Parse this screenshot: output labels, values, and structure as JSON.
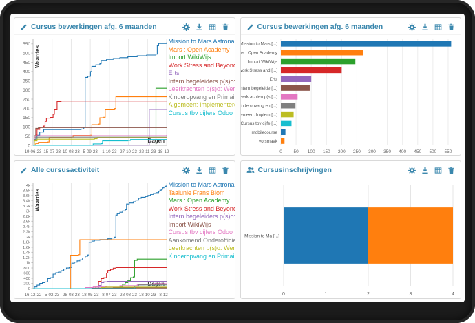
{
  "accent": "#3a87ad",
  "frame_color": "#1c1c1c",
  "palette": [
    "#1f77b4",
    "#ff7f0e",
    "#2ca02c",
    "#d62728",
    "#9467bd",
    "#8c564b",
    "#e377c2",
    "#7f7f7f",
    "#bcbd22",
    "#17becf"
  ],
  "action_icons": [
    "gear",
    "download",
    "table",
    "trash"
  ],
  "panels": [
    {
      "title": "Cursus bewerkingen afg. 6 maanden",
      "title_icon": "pencil"
    },
    {
      "title": "Cursus bewerkingen afg. 6 maanden",
      "title_icon": "pencil"
    },
    {
      "title": "Alle cursusactiviteit",
      "title_icon": "pencil"
    },
    {
      "title": "Cursusinschrijvingen",
      "title_icon": "users"
    }
  ],
  "chart_data": [
    {
      "type": "line",
      "xlabel": "Dagen",
      "ylabel": "Waardes",
      "x_ticks": [
        "19-06-23",
        "15-07-23",
        "10-08-23",
        "5-09-23",
        "1-10-23",
        "27-10-23",
        "22-11-23",
        "18-12-23"
      ],
      "y_ticks": [
        "0",
        "50",
        "100",
        "150",
        "200",
        "250",
        "300",
        "350",
        "400",
        "450",
        "500",
        "550"
      ],
      "y_step": 50,
      "y_max": 575,
      "grid": "vertical",
      "legend_position": "right",
      "series": [
        {
          "name": "Mission to Mars Astronau",
          "color": "#1f77b4",
          "points": [
            [
              0,
              0
            ],
            [
              1,
              30
            ],
            [
              3,
              55
            ],
            [
              5,
              72
            ],
            [
              8,
              85
            ],
            [
              36,
              88
            ],
            [
              38,
              98
            ],
            [
              39,
              368
            ],
            [
              41,
              374
            ],
            [
              43,
              400
            ],
            [
              44,
              428
            ],
            [
              47,
              436
            ],
            [
              50,
              442
            ],
            [
              51,
              460
            ],
            [
              55,
              466
            ],
            [
              60,
              470
            ],
            [
              65,
              475
            ],
            [
              71,
              480
            ],
            [
              78,
              485
            ],
            [
              85,
              489
            ],
            [
              92,
              494
            ],
            [
              93,
              540
            ],
            [
              94,
              552
            ],
            [
              100,
              557
            ]
          ]
        },
        {
          "name": "Mars : Open Academy",
          "color": "#ff7f0e",
          "points": [
            [
              0,
              0
            ],
            [
              2,
              10
            ],
            [
              4,
              16
            ],
            [
              11,
              18
            ],
            [
              12,
              42
            ],
            [
              29,
              44
            ],
            [
              30,
              54
            ],
            [
              43,
              55
            ],
            [
              44,
              112
            ],
            [
              49,
              115
            ],
            [
              50,
              149
            ],
            [
              53,
              152
            ],
            [
              54,
              196
            ],
            [
              61,
              199
            ],
            [
              62,
              263
            ],
            [
              100,
              267
            ]
          ]
        },
        {
          "name": "Import WikiWijs",
          "color": "#2ca02c",
          "points": [
            [
              0,
              2
            ],
            [
              91,
              2
            ],
            [
              92,
              309
            ],
            [
              100,
              311
            ]
          ]
        },
        {
          "name": "Work Stress and Beyond",
          "color": "#d62728",
          "points": [
            [
              0,
              0
            ],
            [
              1,
              40
            ],
            [
              2,
              56
            ],
            [
              3,
              86
            ],
            [
              5,
              98
            ],
            [
              8,
              104
            ],
            [
              9,
              130
            ],
            [
              10,
              147
            ],
            [
              13,
              151
            ],
            [
              15,
              168
            ],
            [
              16,
              196
            ],
            [
              18,
              237
            ],
            [
              21,
              240
            ],
            [
              100,
              241
            ]
          ]
        },
        {
          "name": "Erts",
          "color": "#9467bd",
          "points": [
            [
              0,
              1
            ],
            [
              86,
              1
            ],
            [
              87,
              194
            ],
            [
              100,
              196
            ]
          ]
        },
        {
          "name": "Intern begeleiders p(s)o:",
          "color": "#8c564b",
          "points": [
            [
              0,
              0
            ],
            [
              1,
              52
            ],
            [
              2,
              92
            ],
            [
              4,
              96
            ],
            [
              100,
              99
            ]
          ]
        },
        {
          "name": "Leerkrachten p(s)o: Werk",
          "color": "#e377c2",
          "points": [
            [
              0,
              0
            ],
            [
              1,
              40
            ],
            [
              2,
              52
            ],
            [
              100,
              56
            ]
          ]
        },
        {
          "name": "Kinderopvang en Primair",
          "color": "#7f7f7f",
          "points": [
            [
              0,
              0
            ],
            [
              1,
              32
            ],
            [
              2,
              44
            ],
            [
              100,
              46
            ]
          ]
        },
        {
          "name": "Algemeen: Implementere",
          "color": "#bcbd22",
          "points": [
            [
              0,
              0
            ],
            [
              1,
              24
            ],
            [
              3,
              33
            ],
            [
              46,
              35
            ],
            [
              48,
              41
            ],
            [
              100,
              42
            ]
          ]
        },
        {
          "name": "Cursus tbv cijfers Odoo",
          "color": "#17becf",
          "points": [
            [
              0,
              0
            ],
            [
              43,
              0
            ],
            [
              45,
              8
            ],
            [
              51,
              9
            ],
            [
              52,
              24
            ],
            [
              71,
              26
            ],
            [
              73,
              31
            ],
            [
              100,
              32
            ]
          ]
        }
      ]
    },
    {
      "type": "bar",
      "orientation": "horizontal",
      "x_ticks": [
        "0",
        "50",
        "100",
        "150",
        "200",
        "250",
        "300",
        "350",
        "400",
        "450",
        "500",
        "550"
      ],
      "x_step": 50,
      "x_max": 575,
      "grid": "vertical",
      "categories": [
        "Mission to Mars [...]",
        "Mars : Open Academy",
        "Import WikiWijs",
        "Work Stress and [...]",
        "Erts",
        "Intern begeleide [...]",
        "Leerkrachten p(s [...]",
        "Kinderopvang en [...]",
        "Algemeen: Implem [...]",
        "Cursus tbv cijfe [...]",
        "mobilecourse",
        "vo smaak"
      ],
      "values": [
        560,
        270,
        245,
        200,
        100,
        95,
        55,
        48,
        42,
        35,
        15,
        12
      ],
      "colors": [
        "#1f77b4",
        "#ff7f0e",
        "#2ca02c",
        "#d62728",
        "#9467bd",
        "#8c564b",
        "#e377c2",
        "#7f7f7f",
        "#bcbd22",
        "#17becf",
        "#1f77b4",
        "#ff7f0e"
      ]
    },
    {
      "type": "line",
      "xlabel": "Dagen",
      "ylabel": "Waardes",
      "x_ticks": [
        "16-12-22",
        "5-02-23",
        "28-03-23",
        "18-05-23",
        "8-07-23",
        "28-08-23",
        "18-10-23",
        "8-12-23"
      ],
      "y_ticks": [
        "0",
        "200",
        "400",
        "600",
        "800",
        "1k",
        "1.2k",
        "1.4k",
        "1.6k",
        "1.8k",
        "2k",
        "2.2k",
        "2.4k",
        "2.6k",
        "2.8k",
        "3k",
        "3.2k",
        "3.4k",
        "3.6k",
        "3.8k",
        "4k"
      ],
      "y_step": 200,
      "y_max": 4100,
      "grid": "vertical",
      "legend_position": "right",
      "series": [
        {
          "name": "Mission to Mars Astronau",
          "color": "#1f77b4",
          "points": [
            [
              0,
              0
            ],
            [
              1,
              60
            ],
            [
              3,
              130
            ],
            [
              5,
              200
            ],
            [
              7,
              225
            ],
            [
              9,
              255
            ],
            [
              11,
              390
            ],
            [
              13,
              420
            ],
            [
              15,
              560
            ],
            [
              17,
              610
            ],
            [
              19,
              635
            ],
            [
              21,
              690
            ],
            [
              23,
              755
            ],
            [
              25,
              795
            ],
            [
              27,
              820
            ],
            [
              29,
              980
            ],
            [
              31,
              1020
            ],
            [
              33,
              1070
            ],
            [
              35,
              1110
            ],
            [
              37,
              1185
            ],
            [
              39,
              1250
            ],
            [
              41,
              1300
            ],
            [
              42,
              1790
            ],
            [
              44,
              1835
            ],
            [
              46,
              1870
            ],
            [
              50,
              1895
            ],
            [
              56,
              1925
            ],
            [
              59,
              1955
            ],
            [
              61,
              1990
            ],
            [
              62,
              2840
            ],
            [
              63,
              2895
            ],
            [
              65,
              2950
            ],
            [
              67,
              3000
            ],
            [
              69,
              3050
            ],
            [
              70,
              3270
            ],
            [
              72,
              3310
            ],
            [
              75,
              3355
            ],
            [
              77,
              3415
            ],
            [
              79,
              3490
            ],
            [
              81,
              3530
            ],
            [
              84,
              3560
            ],
            [
              86,
              3600
            ],
            [
              88,
              3640
            ],
            [
              90,
              3675
            ],
            [
              92,
              3705
            ],
            [
              94,
              3760
            ],
            [
              95,
              3800
            ],
            [
              96,
              3840
            ],
            [
              97,
              3895
            ],
            [
              98,
              3930
            ],
            [
              99,
              3960
            ],
            [
              100,
              3990
            ]
          ]
        },
        {
          "name": "Taalunie Frans Blom",
          "color": "#ff7f0e",
          "points": [
            [
              0,
              0
            ],
            [
              27,
              0
            ],
            [
              28,
              1290
            ],
            [
              34,
              1310
            ],
            [
              35,
              1890
            ],
            [
              100,
              1900
            ]
          ]
        },
        {
          "name": "Mars : Open Academy",
          "color": "#2ca02c",
          "points": [
            [
              0,
              0
            ],
            [
              63,
              0
            ],
            [
              65,
              60
            ],
            [
              67,
              160
            ],
            [
              69,
              230
            ],
            [
              71,
              300
            ],
            [
              73,
              420
            ],
            [
              75,
              450
            ],
            [
              76,
              1090
            ],
            [
              78,
              1140
            ],
            [
              100,
              1150
            ]
          ]
        },
        {
          "name": "Work Stress and Beyond",
          "color": "#d62728",
          "points": [
            [
              0,
              0
            ],
            [
              45,
              0
            ],
            [
              47,
              90
            ],
            [
              49,
              280
            ],
            [
              51,
              390
            ],
            [
              53,
              420
            ],
            [
              55,
              600
            ],
            [
              56,
              700
            ],
            [
              58,
              740
            ],
            [
              60,
              790
            ],
            [
              62,
              815
            ],
            [
              100,
              820
            ]
          ]
        },
        {
          "name": "Intern begeleiders p(s)o:",
          "color": "#9467bd",
          "points": [
            [
              0,
              0
            ],
            [
              47,
              0
            ],
            [
              49,
              120
            ],
            [
              51,
              230
            ],
            [
              53,
              260
            ],
            [
              56,
              280
            ],
            [
              100,
              290
            ]
          ]
        },
        {
          "name": "Import WikiWijs",
          "color": "#8c564b",
          "points": [
            [
              0,
              0
            ],
            [
              40,
              0
            ],
            [
              44,
              18
            ],
            [
              60,
              24
            ],
            [
              100,
              30
            ]
          ]
        },
        {
          "name": "Cursus tbv cijfers Odoo",
          "color": "#e377c2",
          "points": [
            [
              0,
              0
            ],
            [
              37,
              0
            ],
            [
              39,
              40
            ],
            [
              45,
              60
            ],
            [
              55,
              90
            ],
            [
              65,
              110
            ],
            [
              78,
              140
            ],
            [
              83,
              168
            ],
            [
              90,
              188
            ],
            [
              100,
              200
            ]
          ]
        },
        {
          "name": "Aankomend Onderofficie",
          "color": "#7f7f7f",
          "points": [
            [
              0,
              0
            ],
            [
              74,
              0
            ],
            [
              76,
              90
            ],
            [
              79,
              140
            ],
            [
              100,
              155
            ]
          ]
        },
        {
          "name": "Leerkrachten p(s)o: Werk",
          "color": "#bcbd22",
          "points": [
            [
              0,
              0
            ],
            [
              49,
              0
            ],
            [
              51,
              40
            ],
            [
              54,
              55
            ],
            [
              100,
              65
            ]
          ]
        },
        {
          "name": "Kinderopvang en Primair",
          "color": "#17becf",
          "points": [
            [
              0,
              0
            ],
            [
              75,
              0
            ],
            [
              77,
              95
            ],
            [
              100,
              105
            ]
          ]
        }
      ]
    },
    {
      "type": "stacked-bar",
      "orientation": "horizontal",
      "x_ticks": [
        "0",
        "1",
        "2",
        "3",
        "4"
      ],
      "x_max": 4,
      "grid": "vertical",
      "categories": [
        "Mission to Ma [...]"
      ],
      "segments": [
        {
          "value": 2,
          "color": "#1f77b4"
        },
        {
          "value": 2,
          "color": "#ff7f0e"
        }
      ]
    }
  ]
}
